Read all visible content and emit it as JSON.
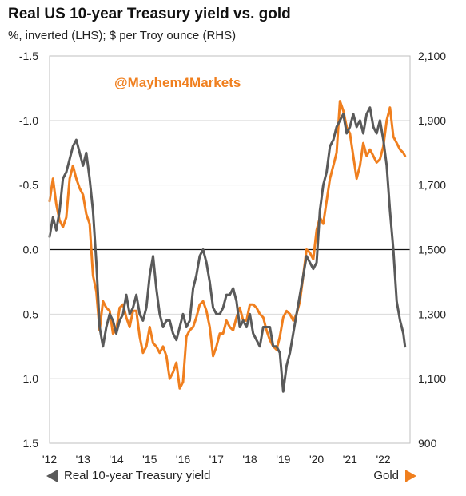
{
  "chart_data": {
    "type": "line",
    "title": "Real US 10-year Treasury yield vs. gold",
    "subtitle": "%, inverted (LHS); $ per Troy ounce (RHS)",
    "watermark": "@Mayhem4Markets",
    "x_tick_labels": [
      "'12",
      "'13",
      "'14",
      "'15",
      "'16",
      "'17",
      "'18",
      "'19",
      "'20",
      "'21",
      "'22"
    ],
    "x_range": [
      2012.0,
      2022.8
    ],
    "left_axis": {
      "ticks": [
        "-1.5",
        "-1.0",
        "-0.5",
        "0.0",
        "0.5",
        "1.0",
        "1.5"
      ],
      "range": [
        -1.5,
        1.5
      ],
      "inverted": true
    },
    "right_axis": {
      "ticks": [
        "2,100",
        "1,900",
        "1,700",
        "1,500",
        "1,300",
        "1,100",
        "900"
      ],
      "range": [
        900,
        2100
      ]
    },
    "grid": true,
    "series": [
      {
        "name": "Real 10-year Treasury yield",
        "axis": "left",
        "color": "#5a5a5a",
        "x": [
          2012.0,
          2012.1,
          2012.2,
          2012.3,
          2012.4,
          2012.5,
          2012.6,
          2012.7,
          2012.8,
          2012.9,
          2013.0,
          2013.1,
          2013.2,
          2013.3,
          2013.4,
          2013.5,
          2013.6,
          2013.7,
          2013.8,
          2013.9,
          2014.0,
          2014.1,
          2014.2,
          2014.3,
          2014.4,
          2014.5,
          2014.6,
          2014.7,
          2014.8,
          2014.9,
          2015.0,
          2015.1,
          2015.2,
          2015.3,
          2015.4,
          2015.5,
          2015.6,
          2015.7,
          2015.8,
          2015.9,
          2016.0,
          2016.1,
          2016.2,
          2016.3,
          2016.4,
          2016.5,
          2016.6,
          2016.7,
          2016.8,
          2016.9,
          2017.0,
          2017.1,
          2017.2,
          2017.3,
          2017.4,
          2017.5,
          2017.6,
          2017.7,
          2017.8,
          2017.9,
          2018.0,
          2018.1,
          2018.2,
          2018.3,
          2018.4,
          2018.5,
          2018.6,
          2018.7,
          2018.8,
          2018.9,
          2019.0,
          2019.1,
          2019.2,
          2019.3,
          2019.4,
          2019.5,
          2019.6,
          2019.7,
          2019.8,
          2019.9,
          2020.0,
          2020.1,
          2020.2,
          2020.3,
          2020.4,
          2020.5,
          2020.6,
          2020.7,
          2020.8,
          2020.9,
          2021.0,
          2021.1,
          2021.2,
          2021.3,
          2021.4,
          2021.5,
          2021.6,
          2021.7,
          2021.8,
          2021.9,
          2022.0,
          2022.1,
          2022.2,
          2022.3,
          2022.4,
          2022.5,
          2022.55,
          2022.6,
          2022.65
        ],
        "y": [
          -0.1,
          -0.25,
          -0.15,
          -0.3,
          -0.55,
          -0.6,
          -0.7,
          -0.8,
          -0.85,
          -0.75,
          -0.65,
          -0.75,
          -0.55,
          -0.3,
          0.1,
          0.6,
          0.75,
          0.6,
          0.5,
          0.55,
          0.65,
          0.55,
          0.5,
          0.35,
          0.5,
          0.45,
          0.35,
          0.5,
          0.55,
          0.45,
          0.2,
          0.05,
          0.3,
          0.5,
          0.6,
          0.55,
          0.55,
          0.65,
          0.7,
          0.6,
          0.5,
          0.6,
          0.55,
          0.3,
          0.2,
          0.05,
          0.0,
          0.1,
          0.25,
          0.45,
          0.5,
          0.5,
          0.45,
          0.35,
          0.35,
          0.3,
          0.4,
          0.6,
          0.55,
          0.6,
          0.5,
          0.65,
          0.7,
          0.75,
          0.6,
          0.6,
          0.6,
          0.75,
          0.75,
          0.8,
          1.1,
          0.9,
          0.8,
          0.65,
          0.5,
          0.35,
          0.2,
          0.05,
          0.1,
          0.15,
          0.1,
          -0.3,
          -0.5,
          -0.6,
          -0.8,
          -0.85,
          -0.95,
          -1.0,
          -1.05,
          -0.9,
          -0.95,
          -1.05,
          -0.95,
          -1.0,
          -0.9,
          -1.05,
          -1.1,
          -0.95,
          -0.9,
          -1.0,
          -0.85,
          -0.65,
          -0.3,
          0.0,
          0.4,
          0.55,
          0.6,
          0.65,
          0.75
        ]
      },
      {
        "name": "Gold",
        "axis": "right",
        "color": "#f07f1e",
        "x": [
          2012.0,
          2012.1,
          2012.2,
          2012.3,
          2012.4,
          2012.5,
          2012.6,
          2012.7,
          2012.8,
          2012.9,
          2013.0,
          2013.1,
          2013.2,
          2013.3,
          2013.4,
          2013.5,
          2013.6,
          2013.7,
          2013.8,
          2013.9,
          2014.0,
          2014.1,
          2014.2,
          2014.3,
          2014.4,
          2014.5,
          2014.6,
          2014.7,
          2014.8,
          2014.9,
          2015.0,
          2015.1,
          2015.2,
          2015.3,
          2015.4,
          2015.5,
          2015.6,
          2015.7,
          2015.8,
          2015.9,
          2016.0,
          2016.1,
          2016.2,
          2016.3,
          2016.4,
          2016.5,
          2016.6,
          2016.7,
          2016.8,
          2016.9,
          2017.0,
          2017.1,
          2017.2,
          2017.3,
          2017.4,
          2017.5,
          2017.6,
          2017.7,
          2017.8,
          2017.9,
          2018.0,
          2018.1,
          2018.2,
          2018.3,
          2018.4,
          2018.5,
          2018.6,
          2018.7,
          2018.8,
          2018.9,
          2019.0,
          2019.1,
          2019.2,
          2019.3,
          2019.4,
          2019.5,
          2019.6,
          2019.7,
          2019.8,
          2019.9,
          2020.0,
          2020.1,
          2020.2,
          2020.3,
          2020.4,
          2020.5,
          2020.6,
          2020.7,
          2020.8,
          2020.9,
          2021.0,
          2021.1,
          2021.2,
          2021.3,
          2021.4,
          2021.5,
          2021.6,
          2021.7,
          2021.8,
          2021.9,
          2022.0,
          2022.1,
          2022.2,
          2022.3,
          2022.4,
          2022.5,
          2022.6,
          2022.65
        ],
        "y": [
          1650,
          1720,
          1640,
          1590,
          1570,
          1600,
          1720,
          1760,
          1720,
          1690,
          1670,
          1610,
          1580,
          1420,
          1370,
          1250,
          1340,
          1320,
          1310,
          1240,
          1250,
          1320,
          1330,
          1290,
          1260,
          1310,
          1310,
          1230,
          1180,
          1200,
          1260,
          1210,
          1200,
          1180,
          1200,
          1170,
          1100,
          1120,
          1150,
          1070,
          1090,
          1230,
          1250,
          1260,
          1290,
          1330,
          1340,
          1310,
          1260,
          1170,
          1200,
          1240,
          1240,
          1280,
          1260,
          1250,
          1290,
          1320,
          1280,
          1280,
          1330,
          1330,
          1320,
          1300,
          1290,
          1250,
          1220,
          1200,
          1190,
          1230,
          1290,
          1310,
          1300,
          1280,
          1300,
          1340,
          1420,
          1500,
          1490,
          1470,
          1560,
          1600,
          1580,
          1650,
          1720,
          1760,
          1800,
          1960,
          1930,
          1880,
          1860,
          1790,
          1720,
          1760,
          1830,
          1790,
          1810,
          1790,
          1770,
          1780,
          1820,
          1900,
          1940,
          1850,
          1830,
          1810,
          1800,
          1790
        ]
      }
    ]
  }
}
